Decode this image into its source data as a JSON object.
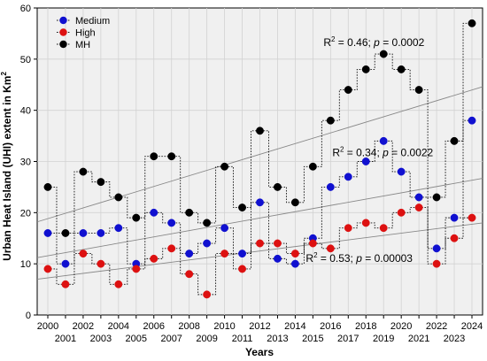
{
  "chart_data": {
    "type": "line",
    "title": "",
    "xlabel": "Years",
    "ylabel": "Urban Heat Island (UHI) extent in Km²",
    "ylabel_main": "Urban Heat Island (UHI) extent in Km",
    "ylabel_sup": "2",
    "xlim": [
      2000,
      2024
    ],
    "ylim": [
      0,
      60
    ],
    "yticks": [
      "0",
      "10",
      "20",
      "30",
      "40",
      "50",
      "60"
    ],
    "xticks_top_row": [
      "2000",
      "2002",
      "2004",
      "2006",
      "2008",
      "2010",
      "2012",
      "2014",
      "2016",
      "2018",
      "2020",
      "2022",
      "2024"
    ],
    "xticks_bottom_row": [
      "2001",
      "2003",
      "2005",
      "2007",
      "2009",
      "2011",
      "2013",
      "2015",
      "2017",
      "2019",
      "2021",
      "2023"
    ],
    "x": [
      2000,
      2001,
      2002,
      2003,
      2004,
      2005,
      2006,
      2007,
      2008,
      2009,
      2010,
      2011,
      2012,
      2013,
      2014,
      2015,
      2016,
      2017,
      2018,
      2019,
      2020,
      2021,
      2022,
      2023,
      2024
    ],
    "legend_position": "top-left",
    "grid": true,
    "background": "#f0f0f0",
    "series": [
      {
        "name": "Medium",
        "color": "#1010d0",
        "values": [
          16,
          10,
          16,
          16,
          17,
          10,
          20,
          18,
          12,
          14,
          17,
          12,
          22,
          11,
          10,
          15,
          25,
          27,
          30,
          34,
          28,
          23,
          13,
          19,
          38
        ],
        "trend": [
          11.2,
          26.7
        ]
      },
      {
        "name": "High",
        "color": "#dd1111",
        "values": [
          9,
          6,
          12,
          10,
          6,
          9,
          11,
          13,
          8,
          4,
          12,
          9,
          14,
          14,
          12,
          14,
          13,
          17,
          18,
          17,
          20,
          21,
          10,
          15,
          19
        ],
        "trend": [
          7.0,
          18.0
        ]
      },
      {
        "name": "MH",
        "color": "#000000",
        "values": [
          25,
          16,
          28,
          26,
          23,
          19,
          31,
          31,
          20,
          18,
          29,
          21,
          36,
          25,
          22,
          29,
          38,
          44,
          48,
          51,
          48,
          44,
          23,
          34,
          57
        ],
        "trend": [
          18.2,
          44.6
        ]
      }
    ],
    "annotations": [
      {
        "text_main": "R",
        "text_sup": "2",
        "text_rest": " = 0.46; ",
        "text_p": "p",
        "text_value": " = 0.0002",
        "x": 2015.6,
        "y": 52.6
      },
      {
        "text_main": "R",
        "text_sup": "2",
        "text_rest": " = 0.34; ",
        "text_p": "p",
        "text_value": " = 0.0022",
        "x": 2016.1,
        "y": 31.0
      },
      {
        "text_main": "R",
        "text_sup": "2",
        "text_rest": " = 0.53; ",
        "text_p": "p",
        "text_value": " = 0.00003",
        "x": 2014.6,
        "y": 10.4
      }
    ]
  }
}
